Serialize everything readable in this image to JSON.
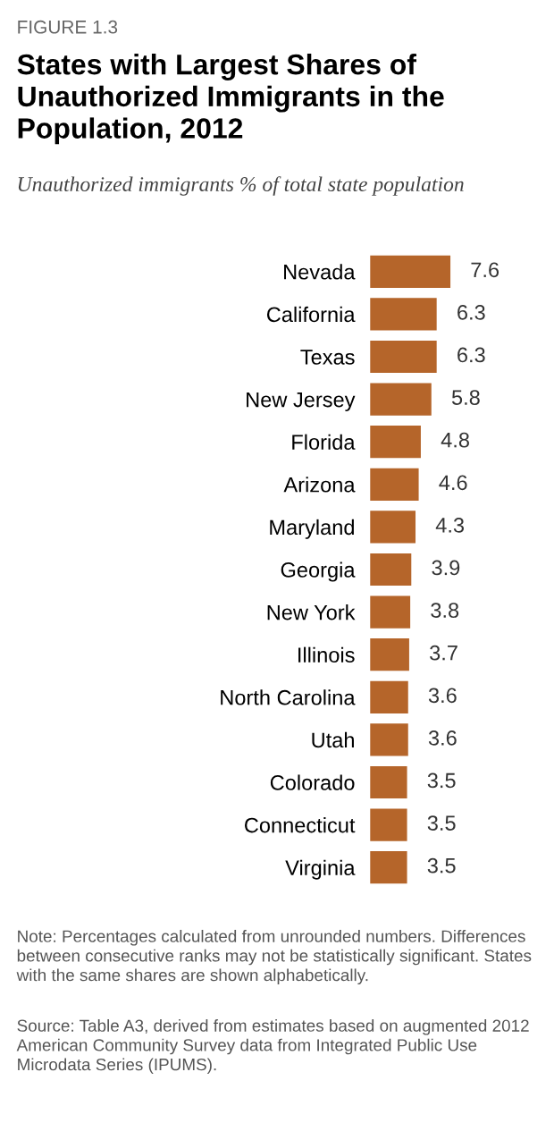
{
  "chart_data": {
    "type": "bar",
    "orientation": "horizontal",
    "title": "States with Largest Shares of Unauthorized Immigrants in the Population, 2012",
    "subtitle": "Unauthorized immigrants % of total state population",
    "categories": [
      "Nevada",
      "California",
      "Texas",
      "New Jersey",
      "Florida",
      "Arizona",
      "Maryland",
      "Georgia",
      "New York",
      "Illinois",
      "North Carolina",
      "Utah",
      "Colorado",
      "Connecticut",
      "Virginia"
    ],
    "values": [
      7.6,
      6.3,
      6.3,
      5.8,
      4.8,
      4.6,
      4.3,
      3.9,
      3.8,
      3.7,
      3.6,
      3.6,
      3.5,
      3.5,
      3.5
    ],
    "color": "#b5652a",
    "data_labels": true,
    "grid": false,
    "legend": false,
    "annotations": [
      "FIGURE 1.3",
      "Note: Percentages calculated from unrounded numbers. Differences between consecutive ranks may not be statistically significant. States with the same shares are shown alphabetically.",
      "Source: Table A3, derived from estimates based on augmented 2012 American Community Survey data from Integrated Public Use Microdata Series (IPUMS)."
    ]
  }
}
